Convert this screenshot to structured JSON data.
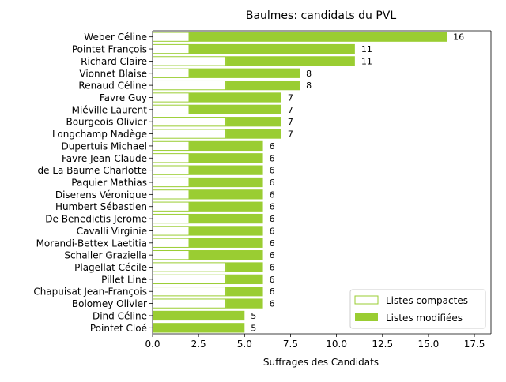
{
  "chart_data": {
    "type": "bar",
    "orientation": "horizontal",
    "stacked": true,
    "title": "Baulmes: candidats du PVL",
    "xlabel": "Suffrages des Candidats",
    "ylabel": "",
    "xlim": [
      0,
      18.4
    ],
    "xticks": [
      0,
      2.5,
      5,
      7.5,
      10,
      12.5,
      15,
      17.5
    ],
    "xtick_labels": [
      "0.0",
      "2.5",
      "5.0",
      "7.5",
      "10.0",
      "12.5",
      "15.0",
      "17.5"
    ],
    "grid": false,
    "legend_position": "bottom-right",
    "categories": [
      "Weber Céline",
      "Pointet François",
      "Richard Claire",
      "Vionnet Blaise",
      "Renaud Céline",
      "Favre Guy",
      "Miéville Laurent",
      "Bourgeois Olivier",
      "Longchamp Nadège",
      "Dupertuis Michael",
      "Favre Jean-Claude",
      "de La Baume Charlotte",
      "Paquier Mathias",
      "Diserens Véronique",
      "Humbert Sébastien",
      "De Benedictis Jerome",
      "Cavalli Virginie",
      "Morandi-Bettex Laetitia",
      "Schaller Graziella",
      "Plagellat Cécile",
      "Pillet Line",
      "Chapuisat Jean-François",
      "Bolomey Olivier",
      "Dind Céline",
      "Pointet Cloé"
    ],
    "series": [
      {
        "name": "Listes compactes",
        "color": "#9acd32",
        "style": "outline",
        "values": [
          2,
          2,
          4,
          2,
          4,
          2,
          2,
          4,
          4,
          2,
          2,
          2,
          2,
          2,
          2,
          2,
          2,
          2,
          2,
          4,
          4,
          4,
          4,
          0,
          0
        ]
      },
      {
        "name": "Listes modifiées",
        "color": "#9acd32",
        "style": "filled",
        "values": [
          14,
          9,
          7,
          6,
          4,
          5,
          5,
          3,
          3,
          4,
          4,
          4,
          4,
          4,
          4,
          4,
          4,
          4,
          4,
          2,
          2,
          2,
          2,
          5,
          5
        ]
      }
    ],
    "totals": [
      16,
      11,
      11,
      8,
      8,
      7,
      7,
      7,
      7,
      6,
      6,
      6,
      6,
      6,
      6,
      6,
      6,
      6,
      6,
      6,
      6,
      6,
      6,
      5,
      5
    ]
  }
}
